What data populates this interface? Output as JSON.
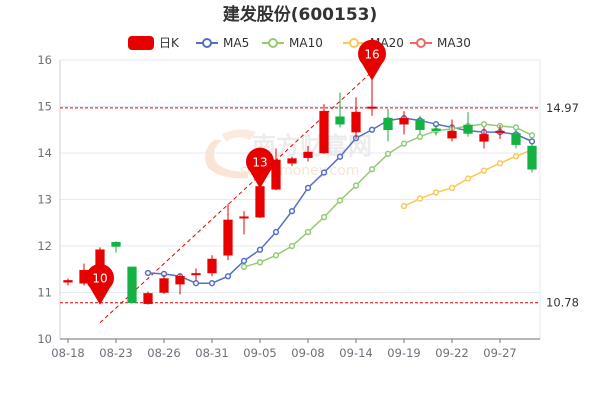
{
  "title": "建发股份(600153)",
  "legend": [
    {
      "label": "日K",
      "color": "#e60000",
      "kind": "candle"
    },
    {
      "label": "MA5",
      "color": "#5470c6",
      "kind": "line"
    },
    {
      "label": "MA10",
      "color": "#91cc75",
      "kind": "line"
    },
    {
      "label": "MA20",
      "color": "#fac858",
      "kind": "line"
    },
    {
      "label": "MA30",
      "color": "#ee6666",
      "kind": "line"
    }
  ],
  "watermark": {
    "cn": "南方财富网",
    "en": "southmoney.com"
  },
  "colors": {
    "up": "#e60000",
    "down": "#14b143",
    "grid": "#e6e9f0",
    "ref_line": "#e60000"
  },
  "chart_data": {
    "type": "candlestick",
    "title": "建发股份(600153)",
    "ylim": [
      10,
      16
    ],
    "yticks": [
      "10",
      "11",
      "12",
      "13",
      "14",
      "15",
      "16"
    ],
    "xtick_labels": [
      "08-18",
      "08-23",
      "08-26",
      "08-31",
      "09-05",
      "09-08",
      "09-14",
      "09-19",
      "09-22",
      "09-27"
    ],
    "grid": true,
    "legend_position": "top",
    "reference_lines": [
      {
        "value": 14.97,
        "label": "14.97"
      },
      {
        "value": 10.78,
        "label": "10.78"
      }
    ],
    "candles": [
      {
        "date": "08-18",
        "open": 11.22,
        "close": 11.26,
        "high": 11.3,
        "low": 11.15
      },
      {
        "date": "08-19",
        "open": 11.2,
        "close": 11.48,
        "high": 11.62,
        "low": 11.15
      },
      {
        "date": "08-22",
        "open": 11.5,
        "close": 11.92,
        "high": 11.97,
        "low": 11.36
      },
      {
        "date": "08-23",
        "open": 12.08,
        "close": 11.99,
        "high": 12.1,
        "low": 11.86
      },
      {
        "date": "08-24",
        "open": 11.55,
        "close": 10.78,
        "high": 11.55,
        "low": 10.78
      },
      {
        "date": "08-25",
        "open": 10.76,
        "close": 10.98,
        "high": 11.02,
        "low": 10.74
      },
      {
        "date": "08-26",
        "open": 11.0,
        "close": 11.3,
        "high": 11.38,
        "low": 10.97
      },
      {
        "date": "08-29",
        "open": 11.18,
        "close": 11.35,
        "high": 11.4,
        "low": 10.96
      },
      {
        "date": "08-30",
        "open": 11.38,
        "close": 11.41,
        "high": 11.52,
        "low": 11.25
      },
      {
        "date": "08-31",
        "open": 11.42,
        "close": 11.72,
        "high": 11.8,
        "low": 11.35
      },
      {
        "date": "09-01",
        "open": 11.8,
        "close": 12.56,
        "high": 12.9,
        "low": 11.7
      },
      {
        "date": "09-02",
        "open": 12.6,
        "close": 12.63,
        "high": 12.75,
        "low": 12.25
      },
      {
        "date": "09-05",
        "open": 12.62,
        "close": 13.28,
        "high": 13.34,
        "low": 12.6
      },
      {
        "date": "09-06",
        "open": 13.22,
        "close": 13.85,
        "high": 14.1,
        "low": 13.2
      },
      {
        "date": "09-07",
        "open": 13.78,
        "close": 13.88,
        "high": 13.92,
        "low": 13.72
      },
      {
        "date": "09-08",
        "open": 13.9,
        "close": 14.02,
        "high": 14.15,
        "low": 13.82
      },
      {
        "date": "09-09",
        "open": 14.0,
        "close": 14.9,
        "high": 15.05,
        "low": 13.98
      },
      {
        "date": "09-13",
        "open": 14.78,
        "close": 14.62,
        "high": 15.3,
        "low": 14.55
      },
      {
        "date": "09-14",
        "open": 14.45,
        "close": 14.88,
        "high": 15.2,
        "low": 14.3
      },
      {
        "date": "09-15",
        "open": 14.97,
        "close": 14.99,
        "high": 15.6,
        "low": 14.8
      },
      {
        "date": "09-16",
        "open": 14.75,
        "close": 14.5,
        "high": 14.95,
        "low": 14.25
      },
      {
        "date": "09-19",
        "open": 14.62,
        "close": 14.75,
        "high": 14.9,
        "low": 14.4
      },
      {
        "date": "09-20",
        "open": 14.72,
        "close": 14.5,
        "high": 14.8,
        "low": 14.4
      },
      {
        "date": "09-21",
        "open": 14.52,
        "close": 14.48,
        "high": 14.6,
        "low": 14.38
      },
      {
        "date": "09-22",
        "open": 14.32,
        "close": 14.47,
        "high": 14.72,
        "low": 14.25
      },
      {
        "date": "09-23",
        "open": 14.6,
        "close": 14.42,
        "high": 14.88,
        "low": 14.35
      },
      {
        "date": "09-26",
        "open": 14.25,
        "close": 14.4,
        "high": 14.55,
        "low": 14.1
      },
      {
        "date": "09-27",
        "open": 14.45,
        "close": 14.47,
        "high": 14.6,
        "low": 14.3
      },
      {
        "date": "09-28",
        "open": 14.42,
        "close": 14.18,
        "high": 14.5,
        "low": 14.1
      },
      {
        "date": "09-29",
        "open": 14.15,
        "close": 13.65,
        "high": 14.2,
        "low": 13.58
      }
    ],
    "series": [
      {
        "name": "MA5",
        "color": "#5470c6",
        "values": [
          null,
          null,
          null,
          null,
          null,
          11.42,
          11.4,
          11.35,
          11.2,
          11.2,
          11.35,
          11.68,
          11.92,
          12.3,
          12.75,
          13.25,
          13.58,
          13.92,
          14.32,
          14.5,
          14.7,
          14.75,
          14.7,
          14.62,
          14.55,
          14.48,
          14.45,
          14.45,
          14.4,
          14.25
        ]
      },
      {
        "name": "MA10",
        "color": "#91cc75",
        "values": [
          null,
          null,
          null,
          null,
          null,
          null,
          null,
          null,
          null,
          null,
          null,
          11.55,
          11.65,
          11.8,
          12.0,
          12.3,
          12.62,
          12.98,
          13.3,
          13.65,
          13.98,
          14.2,
          14.35,
          14.48,
          14.52,
          14.58,
          14.62,
          14.58,
          14.55,
          14.38
        ]
      },
      {
        "name": "MA20",
        "color": "#fac858",
        "values": [
          null,
          null,
          null,
          null,
          null,
          null,
          null,
          null,
          null,
          null,
          null,
          null,
          null,
          null,
          null,
          null,
          null,
          null,
          null,
          null,
          null,
          12.86,
          13.02,
          13.15,
          13.25,
          13.45,
          13.62,
          13.78,
          13.93,
          14.07
        ]
      },
      {
        "name": "MA30",
        "color": "#ee6666",
        "values": []
      }
    ],
    "markers": [
      {
        "label": "10",
        "index": 2,
        "value": 10.78
      },
      {
        "label": "13",
        "index": 12,
        "value": 13.28
      },
      {
        "label": "16",
        "index": 19,
        "value": 15.6
      }
    ],
    "trend_lines": [
      {
        "from_index": 2,
        "from_value": 10.35,
        "to_index": 19,
        "to_value": 15.75
      }
    ]
  }
}
